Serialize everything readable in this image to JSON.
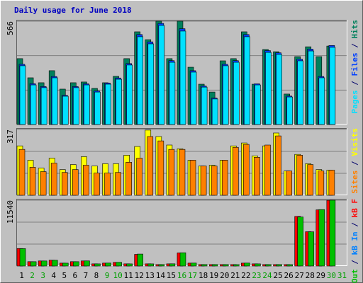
{
  "chart_data": [
    {
      "type": "bar",
      "title": "Daily usage for June 2018",
      "title_color": "#0000c0",
      "ylim": [
        0,
        566
      ],
      "yticks": [
        566
      ],
      "grid_divisions": 3,
      "legend_separator": "/",
      "separator_color": "#00006a",
      "series": [
        {
          "name": "Hits",
          "color": "#00805c",
          "values": [
            361,
            256,
            229,
            295,
            194,
            229,
            233,
            198,
            229,
            264,
            361,
            508,
            465,
            566,
            361,
            566,
            314,
            221,
            178,
            349,
            361,
            508,
            221,
            411,
            399,
            167,
            372,
            426,
            372,
            430,
            0
          ]
        },
        {
          "name": "Files",
          "color": "#0040ff",
          "values": [
            330,
            224,
            208,
            263,
            160,
            208,
            223,
            184,
            227,
            255,
            334,
            493,
            453,
            554,
            350,
            525,
            295,
            211,
            145,
            330,
            350,
            493,
            223,
            405,
            393,
            156,
            358,
            413,
            263,
            433,
            0
          ]
        },
        {
          "name": "Pages",
          "color": "#00e0ff",
          "values": [
            322,
            217,
            202,
            256,
            155,
            202,
            217,
            178,
            221,
            248,
            326,
            481,
            442,
            543,
            341,
            512,
            287,
            205,
            140,
            322,
            341,
            481,
            217,
            395,
            384,
            151,
            349,
            403,
            256,
            423,
            0
          ]
        }
      ]
    },
    {
      "type": "bar",
      "ylim": [
        0,
        317
      ],
      "yticks": [
        317
      ],
      "grid_divisions": 3,
      "series": [
        {
          "name": "Visits",
          "color": "#ffff00",
          "values": [
            238,
            169,
            131,
            179,
            124,
            148,
            186,
            141,
            152,
            152,
            193,
            235,
            314,
            283,
            242,
            224,
            169,
            141,
            145,
            169,
            238,
            252,
            190,
            238,
            300,
            117,
            197,
            152,
            124,
            121,
            0
          ]
        },
        {
          "name": "Sites",
          "color": "#ff8000",
          "values": [
            221,
            135,
            114,
            155,
            110,
            124,
            145,
            107,
            107,
            110,
            159,
            179,
            283,
            262,
            221,
            221,
            169,
            141,
            141,
            169,
            231,
            245,
            183,
            242,
            286,
            117,
            193,
            148,
            117,
            121,
            0
          ]
        }
      ]
    },
    {
      "type": "bar",
      "ylim": [
        0,
        11540
      ],
      "yticks": [
        11540
      ],
      "grid_divisions": 3,
      "categories": [
        "1",
        "2",
        "3",
        "4",
        "5",
        "6",
        "7",
        "8",
        "9",
        "10",
        "11",
        "12",
        "13",
        "14",
        "15",
        "16",
        "17",
        "18",
        "19",
        "20",
        "21",
        "22",
        "23",
        "24",
        "25",
        "26",
        "27",
        "28",
        "29",
        "30",
        "31"
      ],
      "category_colors": [
        "#000000",
        "#00a000",
        "#00a000",
        "#000000",
        "#000000",
        "#000000",
        "#000000",
        "#000000",
        "#00a000",
        "#00a000",
        "#000000",
        "#000000",
        "#000000",
        "#000000",
        "#000000",
        "#00a000",
        "#00a000",
        "#000000",
        "#000000",
        "#000000",
        "#000000",
        "#000000",
        "#00a000",
        "#00a000",
        "#000000",
        "#000000",
        "#000000",
        "#000000",
        "#000000",
        "#00a000",
        "#00a000"
      ],
      "series": [
        {
          "name": "kB F",
          "color": "#ff0000",
          "values": [
            3072,
            768,
            896,
            1024,
            512,
            768,
            896,
            384,
            512,
            640,
            384,
            2048,
            384,
            256,
            384,
            2304,
            512,
            256,
            256,
            256,
            256,
            512,
            384,
            256,
            256,
            256,
            8704,
            6016,
            9856,
            11520,
            0
          ]
        },
        {
          "name": "kB In",
          "color": "#0080ff",
          "values": [
            15,
            15,
            15,
            15,
            15,
            15,
            15,
            15,
            15,
            15,
            15,
            15,
            15,
            15,
            15,
            15,
            15,
            15,
            15,
            15,
            15,
            15,
            15,
            15,
            15,
            15,
            15,
            15,
            15,
            15,
            0
          ]
        },
        {
          "name": "kB Out",
          "color": "#00c000",
          "values": [
            3050,
            760,
            890,
            1010,
            505,
            760,
            900,
            380,
            520,
            650,
            380,
            2100,
            380,
            260,
            390,
            2330,
            520,
            260,
            260,
            260,
            250,
            520,
            380,
            260,
            260,
            250,
            8600,
            6000,
            9900,
            11540,
            0
          ]
        }
      ]
    }
  ]
}
